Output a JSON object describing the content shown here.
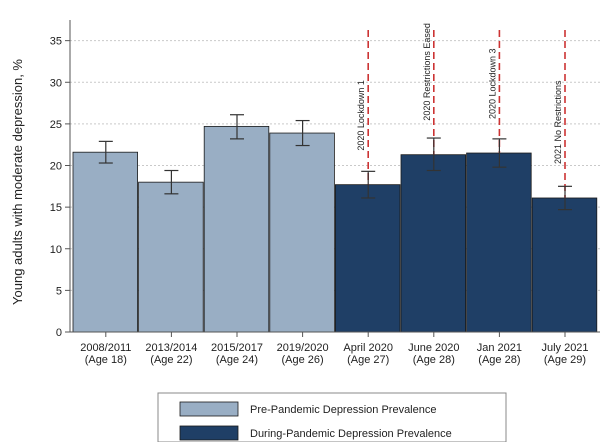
{
  "chart_data": {
    "type": "bar",
    "title": "",
    "ylabel": "Young adults with moderate depression, %",
    "xlabel": "",
    "ylim": [
      0,
      37
    ],
    "yticks": [
      0,
      5,
      10,
      15,
      20,
      25,
      30,
      35
    ],
    "grid": true,
    "legend_position": "bottom",
    "categories": [
      [
        "2008/2011",
        "(Age 18)"
      ],
      [
        "2013/2014",
        "(Age 22)"
      ],
      [
        "2015/2017",
        "(Age 24)"
      ],
      [
        "2019/2020",
        "(Age 26)"
      ],
      [
        "April 2020",
        "(Age 27)"
      ],
      [
        "June 2020",
        "(Age 28)"
      ],
      [
        "Jan 2021",
        "(Age 28)"
      ],
      [
        "July 2021",
        "(Age 29)"
      ]
    ],
    "values": [
      21.6,
      18.0,
      24.7,
      23.9,
      17.7,
      21.3,
      21.5,
      16.1
    ],
    "ci_low": [
      20.3,
      16.6,
      23.2,
      22.4,
      16.1,
      19.4,
      19.8,
      14.7
    ],
    "ci_high": [
      22.9,
      19.4,
      26.1,
      25.4,
      19.3,
      23.3,
      23.2,
      17.5
    ],
    "group": [
      "pre",
      "pre",
      "pre",
      "pre",
      "during",
      "during",
      "during",
      "during"
    ],
    "colors": {
      "pre": "#99aec4",
      "during": "#1f3f66",
      "annotation_line": "#cc3333",
      "error_bar": "#333333"
    },
    "legend": [
      {
        "key": "pre",
        "label": "Pre-Pandemic Depression Prevalence"
      },
      {
        "key": "during",
        "label": "During-Pandemic Depression Prevalence"
      }
    ],
    "annotations": [
      {
        "category_index": 4,
        "text": "2020 Lockdown 1"
      },
      {
        "category_index": 5,
        "text": "2020 Restrictions Eased"
      },
      {
        "category_index": 6,
        "text": "2020 Lockdown 3"
      },
      {
        "category_index": 7,
        "text": "2021 No Restrictions"
      }
    ]
  }
}
